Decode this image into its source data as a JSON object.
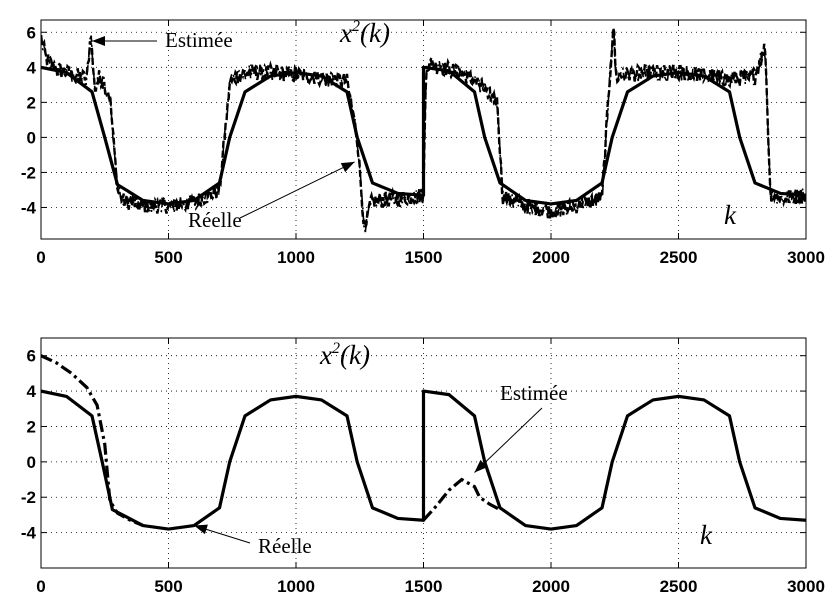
{
  "chart_data": [
    {
      "type": "line",
      "panel": "top",
      "title_label": {
        "base": "x",
        "sup": "2",
        "arg": "(k)"
      },
      "xlabel": "k",
      "xlim": [
        0,
        3000
      ],
      "ylim": [
        -5.8,
        6.7
      ],
      "xticks": [
        0,
        500,
        1000,
        1500,
        2000,
        2500,
        3000
      ],
      "yticks": [
        -4,
        -2,
        0,
        2,
        4,
        6
      ],
      "grid": true,
      "annotations": [
        {
          "text": "Estimée",
          "target": [
            200,
            5.5
          ]
        },
        {
          "text": "Réelle",
          "target": [
            1230,
            -1.4
          ]
        }
      ],
      "series": [
        {
          "name": "Réelle",
          "style": "solid",
          "x": [
            0,
            100,
            200,
            250,
            300,
            400,
            500,
            600,
            700,
            740,
            800,
            900,
            1000,
            1100,
            1200,
            1240,
            1300,
            1400,
            1500,
            1500,
            1600,
            1700,
            1740,
            1800,
            1900,
            2000,
            2100,
            2200,
            2240,
            2300,
            2400,
            2500,
            2600,
            2700,
            2740,
            2800,
            2900,
            3000
          ],
          "y": [
            4.0,
            3.7,
            2.6,
            0.0,
            -2.7,
            -3.6,
            -3.8,
            -3.6,
            -2.6,
            0.0,
            2.6,
            3.5,
            3.7,
            3.5,
            2.6,
            0.0,
            -2.6,
            -3.2,
            -3.3,
            4.0,
            3.8,
            2.6,
            0.0,
            -2.6,
            -3.6,
            -3.8,
            -3.6,
            -2.6,
            0.0,
            2.6,
            3.5,
            3.7,
            3.5,
            2.6,
            0.0,
            -2.6,
            -3.2,
            -3.3
          ]
        },
        {
          "name": "Estimée",
          "style": "noisy-dashed",
          "noise": 0.45,
          "x": [
            0,
            20,
            60,
            120,
            180,
            195,
            210,
            230,
            270,
            300,
            320,
            400,
            500,
            600,
            700,
            740,
            760,
            800,
            900,
            1000,
            1100,
            1200,
            1240,
            1270,
            1290,
            1310,
            1400,
            1500,
            1510,
            1600,
            1700,
            1790,
            1810,
            1900,
            2000,
            2100,
            2200,
            2245,
            2255,
            2300,
            2400,
            2500,
            2600,
            2700,
            2800,
            2840,
            2860,
            2900,
            3000
          ],
          "y": [
            5.7,
            4.5,
            3.9,
            3.6,
            3.4,
            5.9,
            2.8,
            3.5,
            2.4,
            -3.0,
            -3.6,
            -3.9,
            -3.9,
            -3.7,
            -3.0,
            3.0,
            3.4,
            3.7,
            3.7,
            3.6,
            3.4,
            3.2,
            0.0,
            -5.6,
            -3.8,
            -3.6,
            -3.5,
            -3.3,
            4.2,
            3.9,
            3.3,
            2.0,
            -3.4,
            -3.9,
            -4.2,
            -3.9,
            -3.4,
            6.6,
            3.4,
            3.6,
            3.7,
            3.7,
            3.6,
            3.3,
            3.5,
            5.2,
            -3.2,
            -3.5,
            -3.3
          ]
        }
      ]
    },
    {
      "type": "line",
      "panel": "bottom",
      "title_label": {
        "base": "x",
        "sup": "2",
        "arg": "(k)"
      },
      "xlabel": "k",
      "xlim": [
        0,
        3000
      ],
      "ylim": [
        -6,
        7
      ],
      "xticks": [
        0,
        500,
        1000,
        1500,
        2000,
        2500,
        3000
      ],
      "yticks": [
        -4,
        -2,
        0,
        2,
        4,
        6
      ],
      "grid": true,
      "annotations": [
        {
          "text": "Estimée",
          "target": [
            1700,
            -0.6
          ]
        },
        {
          "text": "Réelle",
          "target": [
            600,
            -3.6
          ]
        }
      ],
      "series": [
        {
          "name": "Réelle",
          "style": "solid",
          "x": [
            0,
            100,
            200,
            240,
            280,
            400,
            500,
            600,
            700,
            740,
            800,
            900,
            1000,
            1100,
            1200,
            1240,
            1300,
            1400,
            1500,
            1500,
            1600,
            1700,
            1740,
            1800,
            1900,
            2000,
            2100,
            2200,
            2240,
            2300,
            2400,
            2500,
            2600,
            2700,
            2740,
            2800,
            2900,
            3000
          ],
          "y": [
            4.0,
            3.7,
            2.6,
            0.0,
            -2.7,
            -3.6,
            -3.8,
            -3.6,
            -2.6,
            0.0,
            2.6,
            3.5,
            3.7,
            3.5,
            2.6,
            0.0,
            -2.6,
            -3.2,
            -3.3,
            4.0,
            3.8,
            2.6,
            0.0,
            -2.6,
            -3.6,
            -3.8,
            -3.6,
            -2.6,
            0.0,
            2.6,
            3.5,
            3.7,
            3.5,
            2.6,
            0.0,
            -2.6,
            -3.2,
            -3.3
          ]
        },
        {
          "name": "Estimée",
          "style": "dashdot",
          "x": [
            0,
            60,
            120,
            180,
            220,
            250,
            270,
            300,
            350,
            400
          ],
          "y": [
            6.0,
            5.6,
            5.0,
            4.2,
            3.2,
            1.0,
            -2.2,
            -2.9,
            -3.3,
            -3.6
          ],
          "x2": [
            1500,
            1550,
            1600,
            1650,
            1700,
            1720,
            1760,
            1800
          ],
          "y2": [
            -3.3,
            -2.5,
            -1.6,
            -1.0,
            -1.4,
            -2.0,
            -2.4,
            -2.7
          ]
        }
      ]
    }
  ]
}
